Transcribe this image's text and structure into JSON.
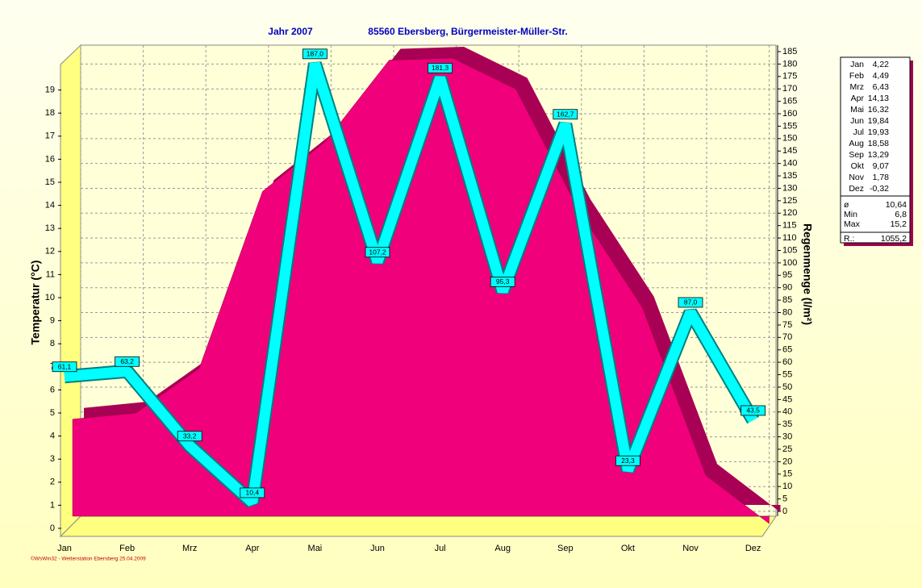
{
  "chart_data": {
    "type": "combo",
    "title": "Jahr  2007",
    "subtitle": "85560 Ebersberg, Bürgermeister-Müller-Str.",
    "ylabel": "Temperatur  (°C)",
    "y2label": "Regenmenge  (l/m²)",
    "footer": "©WsWin32 - Wetterstation Ebersberg 25.04.2009",
    "categories": [
      "Jan",
      "Feb",
      "Mrz",
      "Apr",
      "Mai",
      "Jun",
      "Jul",
      "Aug",
      "Sep",
      "Okt",
      "Nov",
      "Dez"
    ],
    "series": [
      {
        "name": "Temperatur",
        "type": "area",
        "color": "#f0007a",
        "values": [
          4.22,
          4.49,
          6.43,
          14.13,
          16.32,
          19.84,
          19.93,
          18.58,
          13.29,
          9.07,
          1.78,
          -0.32
        ],
        "value_labels": [
          "4,22",
          "4,49",
          "6,43",
          "14,13",
          "16,32",
          "19,84",
          "19,93",
          "18,58",
          "13,29",
          "9,07",
          "1,78",
          "-0,32"
        ]
      },
      {
        "name": "Regenmenge",
        "type": "line",
        "axis": "y2",
        "color": "#00ffff",
        "values": [
          61.1,
          63.2,
          33.2,
          10.4,
          187.0,
          107.2,
          181.3,
          95.3,
          162.7,
          23.3,
          87.0,
          43.5
        ],
        "value_labels": [
          "61,1",
          "63,2",
          "33,2",
          "10,4",
          "187,0",
          "107,2",
          "181,3",
          "95,3",
          "162,7",
          "23,3",
          "87,0",
          "43,5"
        ]
      }
    ],
    "ylim": [
      0,
      20
    ],
    "yticks": [
      0,
      1,
      2,
      3,
      4,
      5,
      6,
      7,
      8,
      9,
      10,
      11,
      12,
      13,
      14,
      15,
      16,
      17,
      18,
      19
    ],
    "y2lim": [
      0,
      185
    ],
    "y2ticks": [
      0,
      5,
      10,
      15,
      20,
      25,
      30,
      35,
      40,
      45,
      50,
      55,
      60,
      65,
      70,
      75,
      80,
      85,
      90,
      95,
      100,
      105,
      110,
      115,
      120,
      125,
      130,
      135,
      140,
      145,
      150,
      155,
      160,
      165,
      170,
      175,
      180,
      185
    ],
    "grid": true,
    "stats": [
      {
        "label": "ø",
        "value": "10,64"
      },
      {
        "label": "Min",
        "value": "6,8"
      },
      {
        "label": "Max",
        "value": "15,2"
      },
      {
        "label": "R.:",
        "value": "1055,2"
      }
    ]
  }
}
